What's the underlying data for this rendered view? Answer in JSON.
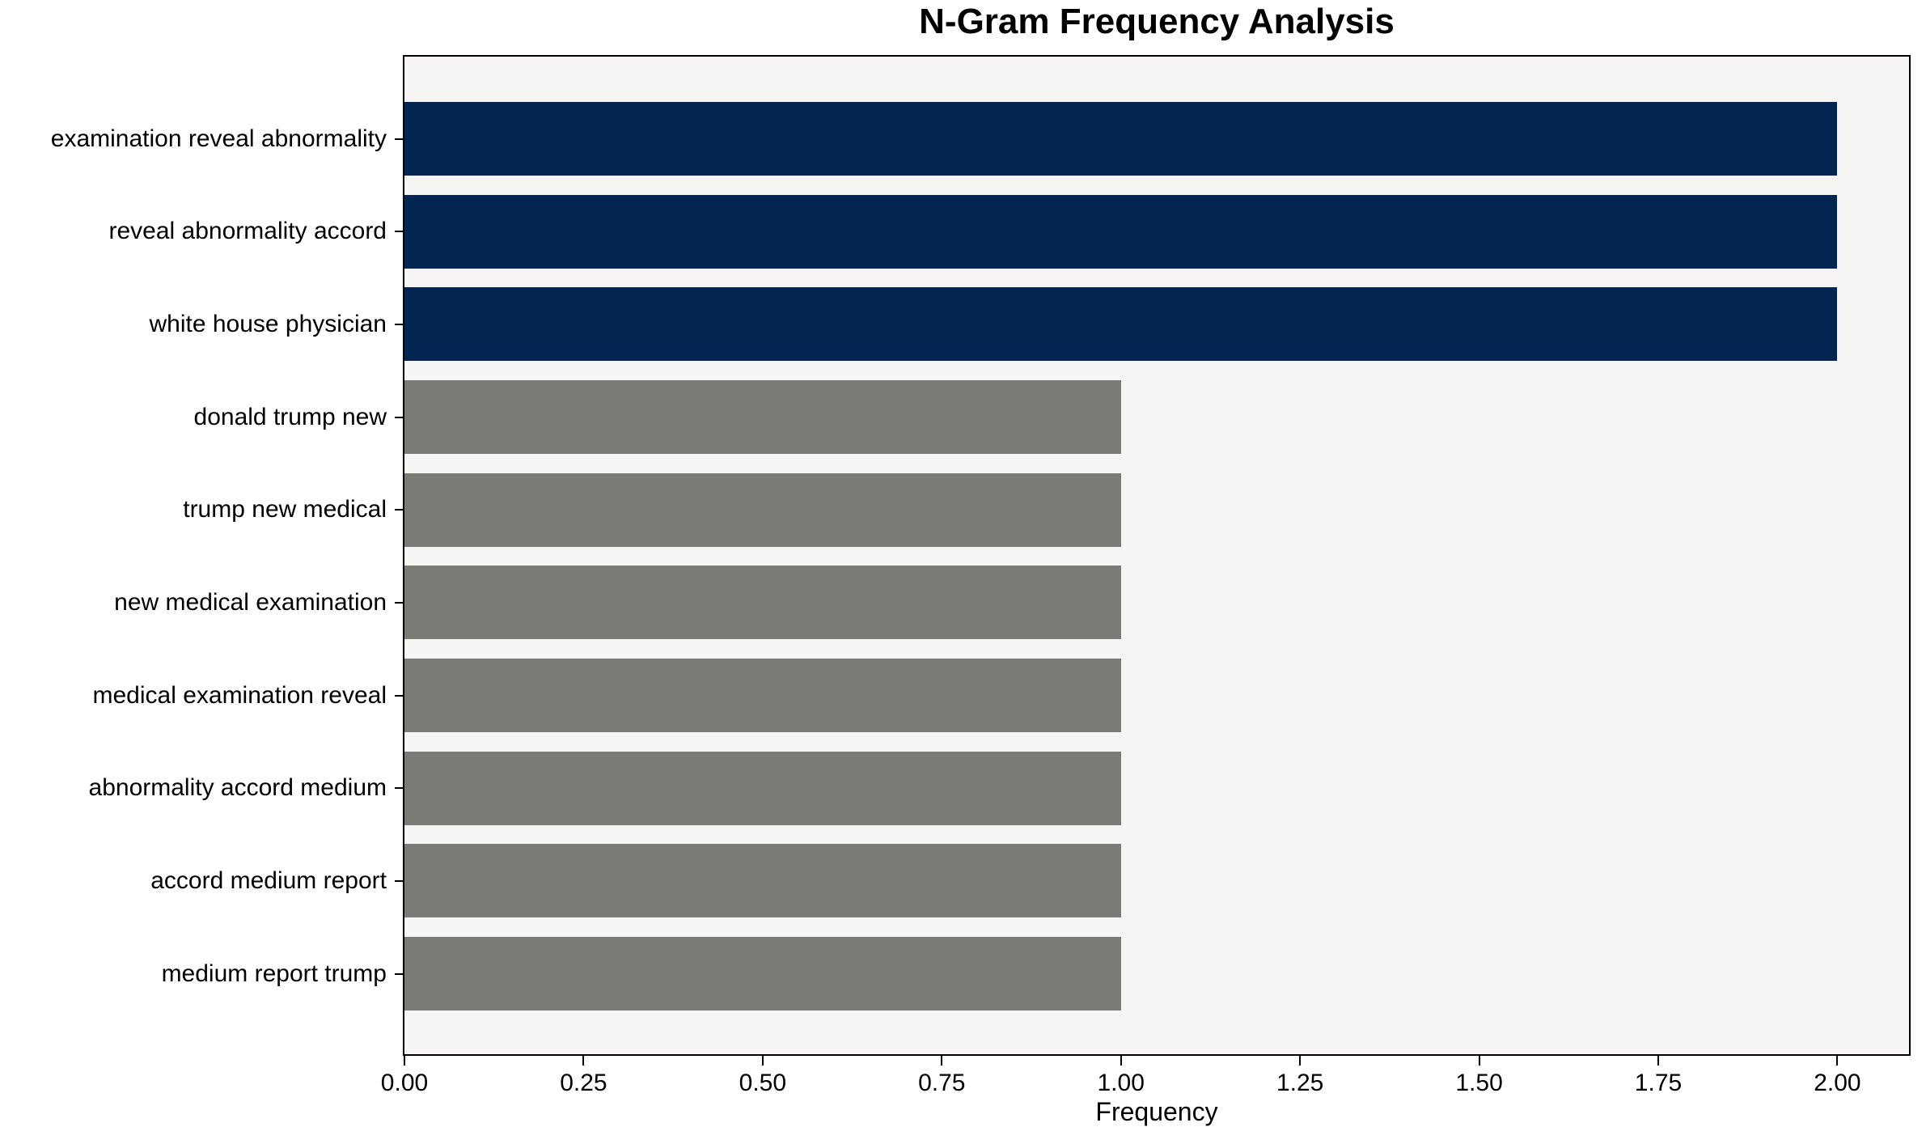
{
  "chart_data": {
    "type": "bar",
    "orientation": "horizontal",
    "title": "N-Gram Frequency Analysis",
    "xlabel": "Frequency",
    "ylabel": "",
    "categories": [
      "examination reveal abnormality",
      "reveal abnormality accord",
      "white house physician",
      "donald trump new",
      "trump new medical",
      "new medical examination",
      "medical examination reveal",
      "abnormality accord medium",
      "accord medium report",
      "medium report trump"
    ],
    "values": [
      2,
      2,
      2,
      1,
      1,
      1,
      1,
      1,
      1,
      1
    ],
    "bar_colors": [
      "#022552",
      "#022552",
      "#022552",
      "#7b7a77",
      "#7b7a77",
      "#7b7a77",
      "#7b7a77",
      "#7b7a77",
      "#7b7a77",
      "#7b7a77"
    ],
    "xlim": [
      0,
      2.1
    ],
    "xtick_labels": [
      "0.00",
      "0.25",
      "0.50",
      "0.75",
      "1.00",
      "1.25",
      "1.50",
      "1.75",
      "2.00"
    ],
    "xtick_values": [
      0,
      0.25,
      0.5,
      0.75,
      1.0,
      1.25,
      1.5,
      1.75,
      2.0
    ],
    "grid": false,
    "legend": false,
    "colors": {
      "bar_high": "#022552",
      "bar_low": "#7b7a77",
      "plot_background": "#f6f5f3",
      "figure_background": "#ffffff",
      "spine": "#000000",
      "text": "#000000"
    }
  }
}
